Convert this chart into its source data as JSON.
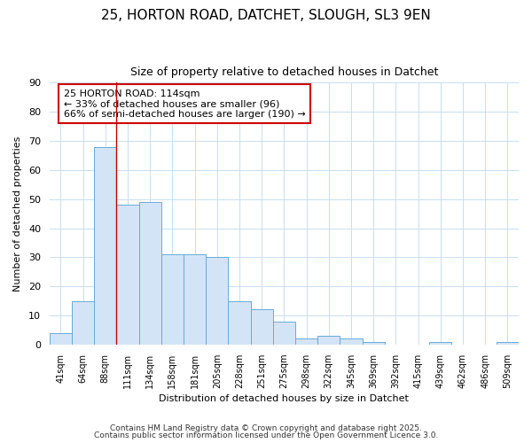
{
  "title1": "25, HORTON ROAD, DATCHET, SLOUGH, SL3 9EN",
  "title2": "Size of property relative to detached houses in Datchet",
  "xlabel": "Distribution of detached houses by size in Datchet",
  "ylabel": "Number of detached properties",
  "categories": [
    "41sqm",
    "64sqm",
    "88sqm",
    "111sqm",
    "134sqm",
    "158sqm",
    "181sqm",
    "205sqm",
    "228sqm",
    "251sqm",
    "275sqm",
    "298sqm",
    "322sqm",
    "345sqm",
    "369sqm",
    "392sqm",
    "415sqm",
    "439sqm",
    "462sqm",
    "486sqm",
    "509sqm"
  ],
  "values": [
    4,
    15,
    68,
    48,
    49,
    31,
    31,
    30,
    15,
    12,
    8,
    2,
    3,
    2,
    1,
    0,
    0,
    1,
    0,
    0,
    1
  ],
  "bar_color": "#d4e4f7",
  "bar_edge_color": "#6aaad4",
  "background_color": "#ffffff",
  "grid_color": "#c8ddf0",
  "vline_color": "#cc0000",
  "vline_x": 2.5,
  "annotation_text": "25 HORTON ROAD: 114sqm\n← 33% of detached houses are smaller (96)\n66% of semi-detached houses are larger (190) →",
  "annotation_box_facecolor": "#ffffff",
  "annotation_box_edgecolor": "#cc0000",
  "ylim": [
    0,
    90
  ],
  "yticks": [
    0,
    10,
    20,
    30,
    40,
    50,
    60,
    70,
    80,
    90
  ],
  "footer1": "Contains HM Land Registry data © Crown copyright and database right 2025.",
  "footer2": "Contains public sector information licensed under the Open Government Licence 3.0.",
  "title1_fontsize": 11,
  "title2_fontsize": 9,
  "axis_fontsize": 8,
  "tick_fontsize": 8,
  "annot_fontsize": 8
}
